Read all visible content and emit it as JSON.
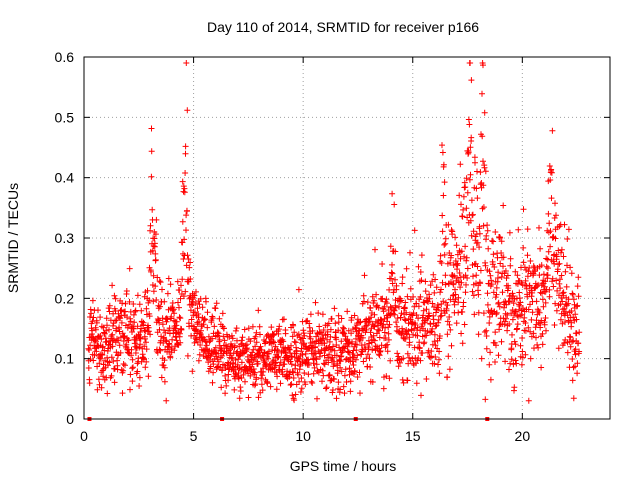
{
  "chart_data": {
    "type": "scatter",
    "title": "Day 110 of 2014, SRMTID for receiver p166",
    "xlabel": "GPS time / hours",
    "ylabel": "SRMTID / TECUs",
    "xlim": [
      0,
      24
    ],
    "ylim": [
      0,
      0.6
    ],
    "x_ticks": [
      0,
      5,
      10,
      15,
      20
    ],
    "x_tick_labels": [
      "0",
      "5",
      "10",
      "15",
      "20"
    ],
    "y_ticks": [
      0,
      0.1,
      0.2,
      0.3,
      0.4,
      0.5,
      0.6
    ],
    "y_tick_labels": [
      "0",
      "0.1",
      "0.2",
      "0.3",
      "0.4",
      "0.5",
      "0.6"
    ],
    "grid": true,
    "marker": "+",
    "color": "#ff0000",
    "x_range_data": [
      0.2,
      22.6
    ],
    "data_gaps_marked_at_x": [
      0.25,
      6.3,
      12.4,
      18.4
    ],
    "trend_anchors": {
      "x": [
        0.2,
        1.0,
        2.0,
        2.8,
        3.2,
        3.6,
        4.2,
        4.6,
        5.0,
        6.0,
        7.0,
        8.0,
        9.0,
        10.0,
        11.0,
        12.0,
        12.6,
        13.5,
        14.5,
        15.5,
        16.3,
        17.0,
        17.6,
        18.0,
        18.5,
        19.5,
        20.3,
        21.0,
        21.4,
        22.0,
        22.6
      ],
      "y": [
        0.13,
        0.12,
        0.14,
        0.13,
        0.22,
        0.14,
        0.16,
        0.2,
        0.15,
        0.12,
        0.1,
        0.1,
        0.1,
        0.11,
        0.12,
        0.11,
        0.13,
        0.15,
        0.16,
        0.16,
        0.15,
        0.22,
        0.28,
        0.26,
        0.2,
        0.18,
        0.2,
        0.22,
        0.26,
        0.18,
        0.14
      ]
    },
    "peaks": [
      {
        "x": 3.1,
        "y": 0.375
      },
      {
        "x": 4.6,
        "y": 0.505
      },
      {
        "x": 14.1,
        "y": 0.3
      },
      {
        "x": 16.4,
        "y": 0.4
      },
      {
        "x": 17.6,
        "y": 0.545
      },
      {
        "x": 18.2,
        "y": 0.5
      },
      {
        "x": 19.0,
        "y": 0.29
      },
      {
        "x": 21.3,
        "y": 0.375
      }
    ]
  }
}
